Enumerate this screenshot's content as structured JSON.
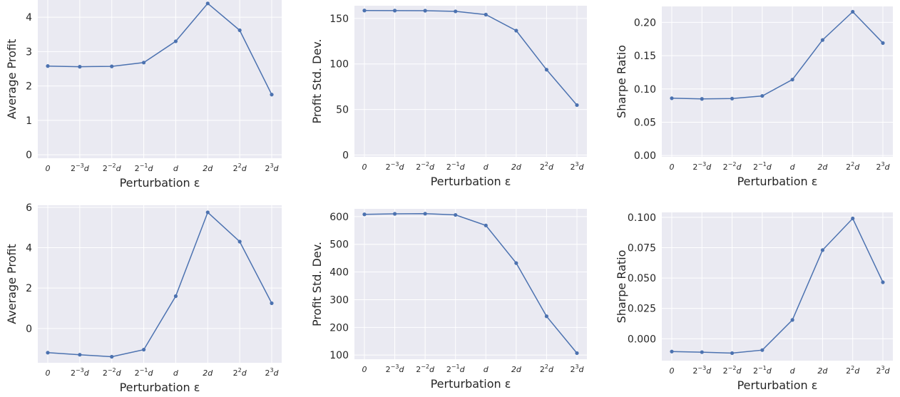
{
  "chart_data": [
    {
      "type": "line",
      "xlabel": "Perturbation ε",
      "ylabel": "Average Profit",
      "categories": [
        "0",
        "2^-3d",
        "2^-2d",
        "2^-1d",
        "d",
        "2d",
        "2^2d",
        "2^3d"
      ],
      "values": [
        2.58,
        2.56,
        2.57,
        2.68,
        3.3,
        4.4,
        3.62,
        1.75
      ],
      "ylim": [
        -0.1,
        4.5
      ],
      "yticks": [
        0,
        1,
        2,
        3,
        4
      ],
      "grid": true
    },
    {
      "type": "line",
      "xlabel": "Perturbation ε",
      "ylabel": "Profit Std. Dev.",
      "categories": [
        "0",
        "2^-3d",
        "2^-2d",
        "2^-1d",
        "d",
        "2d",
        "2^2d",
        "2^3d"
      ],
      "values": [
        158.7,
        158.6,
        158.5,
        157.8,
        154.2,
        136.6,
        93.7,
        54.8
      ],
      "ylim": [
        -2,
        164
      ],
      "yticks": [
        0,
        50,
        100,
        150
      ],
      "grid": true
    },
    {
      "type": "line",
      "xlabel": "Perturbation ε",
      "ylabel": "Sharpe Ratio",
      "categories": [
        "0",
        "2^-3d",
        "2^-2d",
        "2^-1d",
        "d",
        "2d",
        "2^2d",
        "2^3d"
      ],
      "values": [
        0.086,
        0.085,
        0.0855,
        0.0895,
        0.114,
        0.1735,
        0.216,
        0.169
      ],
      "ylim": [
        -0.002,
        0.224
      ],
      "yticks": [
        "0.00",
        "0.05",
        "0.10",
        "0.15",
        "0.20"
      ],
      "grid": true
    },
    {
      "type": "line",
      "xlabel": "Perturbation ε",
      "ylabel": "Average Profit",
      "categories": [
        "0",
        "2^-3d",
        "2^-2d",
        "2^-1d",
        "d",
        "2d",
        "2^2d",
        "2^3d"
      ],
      "values": [
        -1.2,
        -1.3,
        -1.4,
        -1.05,
        1.6,
        5.75,
        4.3,
        1.25
      ],
      "ylim": [
        -1.7,
        6.1
      ],
      "yticks": [
        0,
        2,
        4,
        6
      ],
      "grid": true
    },
    {
      "type": "line",
      "xlabel": "Perturbation ε",
      "ylabel": "Profit Std. Dev.",
      "categories": [
        "0",
        "2^-3d",
        "2^-2d",
        "2^-1d",
        "d",
        "2d",
        "2^2d",
        "2^3d"
      ],
      "values": [
        608,
        610,
        610.5,
        606,
        568,
        432,
        240,
        107
      ],
      "ylim": [
        85,
        628
      ],
      "yticks": [
        100,
        200,
        300,
        400,
        500,
        600
      ],
      "grid": true
    },
    {
      "type": "line",
      "xlabel": "Perturbation ε",
      "ylabel": "Sharpe Ratio",
      "categories": [
        "0",
        "2^-3d",
        "2^-2d",
        "2^-1d",
        "d",
        "2d",
        "2^2d",
        "2^3d"
      ],
      "values": [
        -0.0105,
        -0.011,
        -0.0118,
        -0.0093,
        0.0155,
        0.073,
        0.099,
        0.0465
      ],
      "ylim": [
        -0.018,
        0.104
      ],
      "yticks": [
        "0.000",
        "0.025",
        "0.050",
        "0.075",
        "0.100"
      ],
      "grid": true
    }
  ]
}
